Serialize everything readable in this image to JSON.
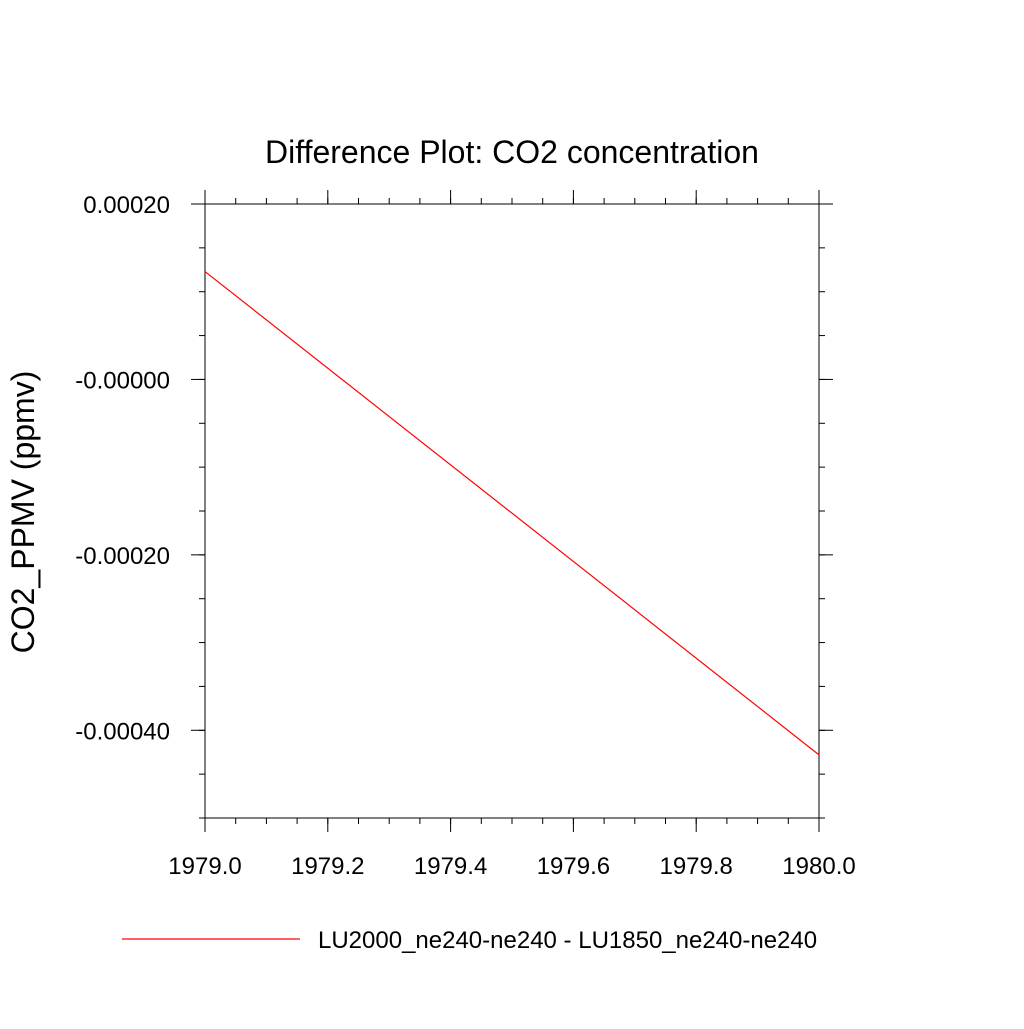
{
  "chart_data": {
    "type": "line",
    "title": "Difference Plot: CO2 concentration",
    "xlabel": "",
    "ylabel": "CO2_PPMV  (ppmv)",
    "xlim": [
      1979.0,
      1980.0
    ],
    "ylim": [
      -0.0005,
      0.0002
    ],
    "x_ticks": [
      1979.0,
      1979.2,
      1979.4,
      1979.6,
      1979.8,
      1980.0
    ],
    "x_tick_labels": [
      "1979.0",
      "1979.2",
      "1979.4",
      "1979.6",
      "1979.8",
      "1980.0"
    ],
    "y_ticks": [
      0.0002,
      0.0,
      -0.0002,
      -0.0004
    ],
    "y_tick_labels": [
      "0.00020",
      "-0.00000",
      "-0.00020",
      "-0.00040"
    ],
    "grid": false,
    "legend_position": "bottom",
    "series": [
      {
        "name": "LU2000_ne240-ne240 - LU1850_ne240-ne240",
        "color": "#ff0000",
        "x": [
          1979.0,
          1980.0
        ],
        "y": [
          0.000123,
          -0.000428
        ]
      }
    ]
  }
}
